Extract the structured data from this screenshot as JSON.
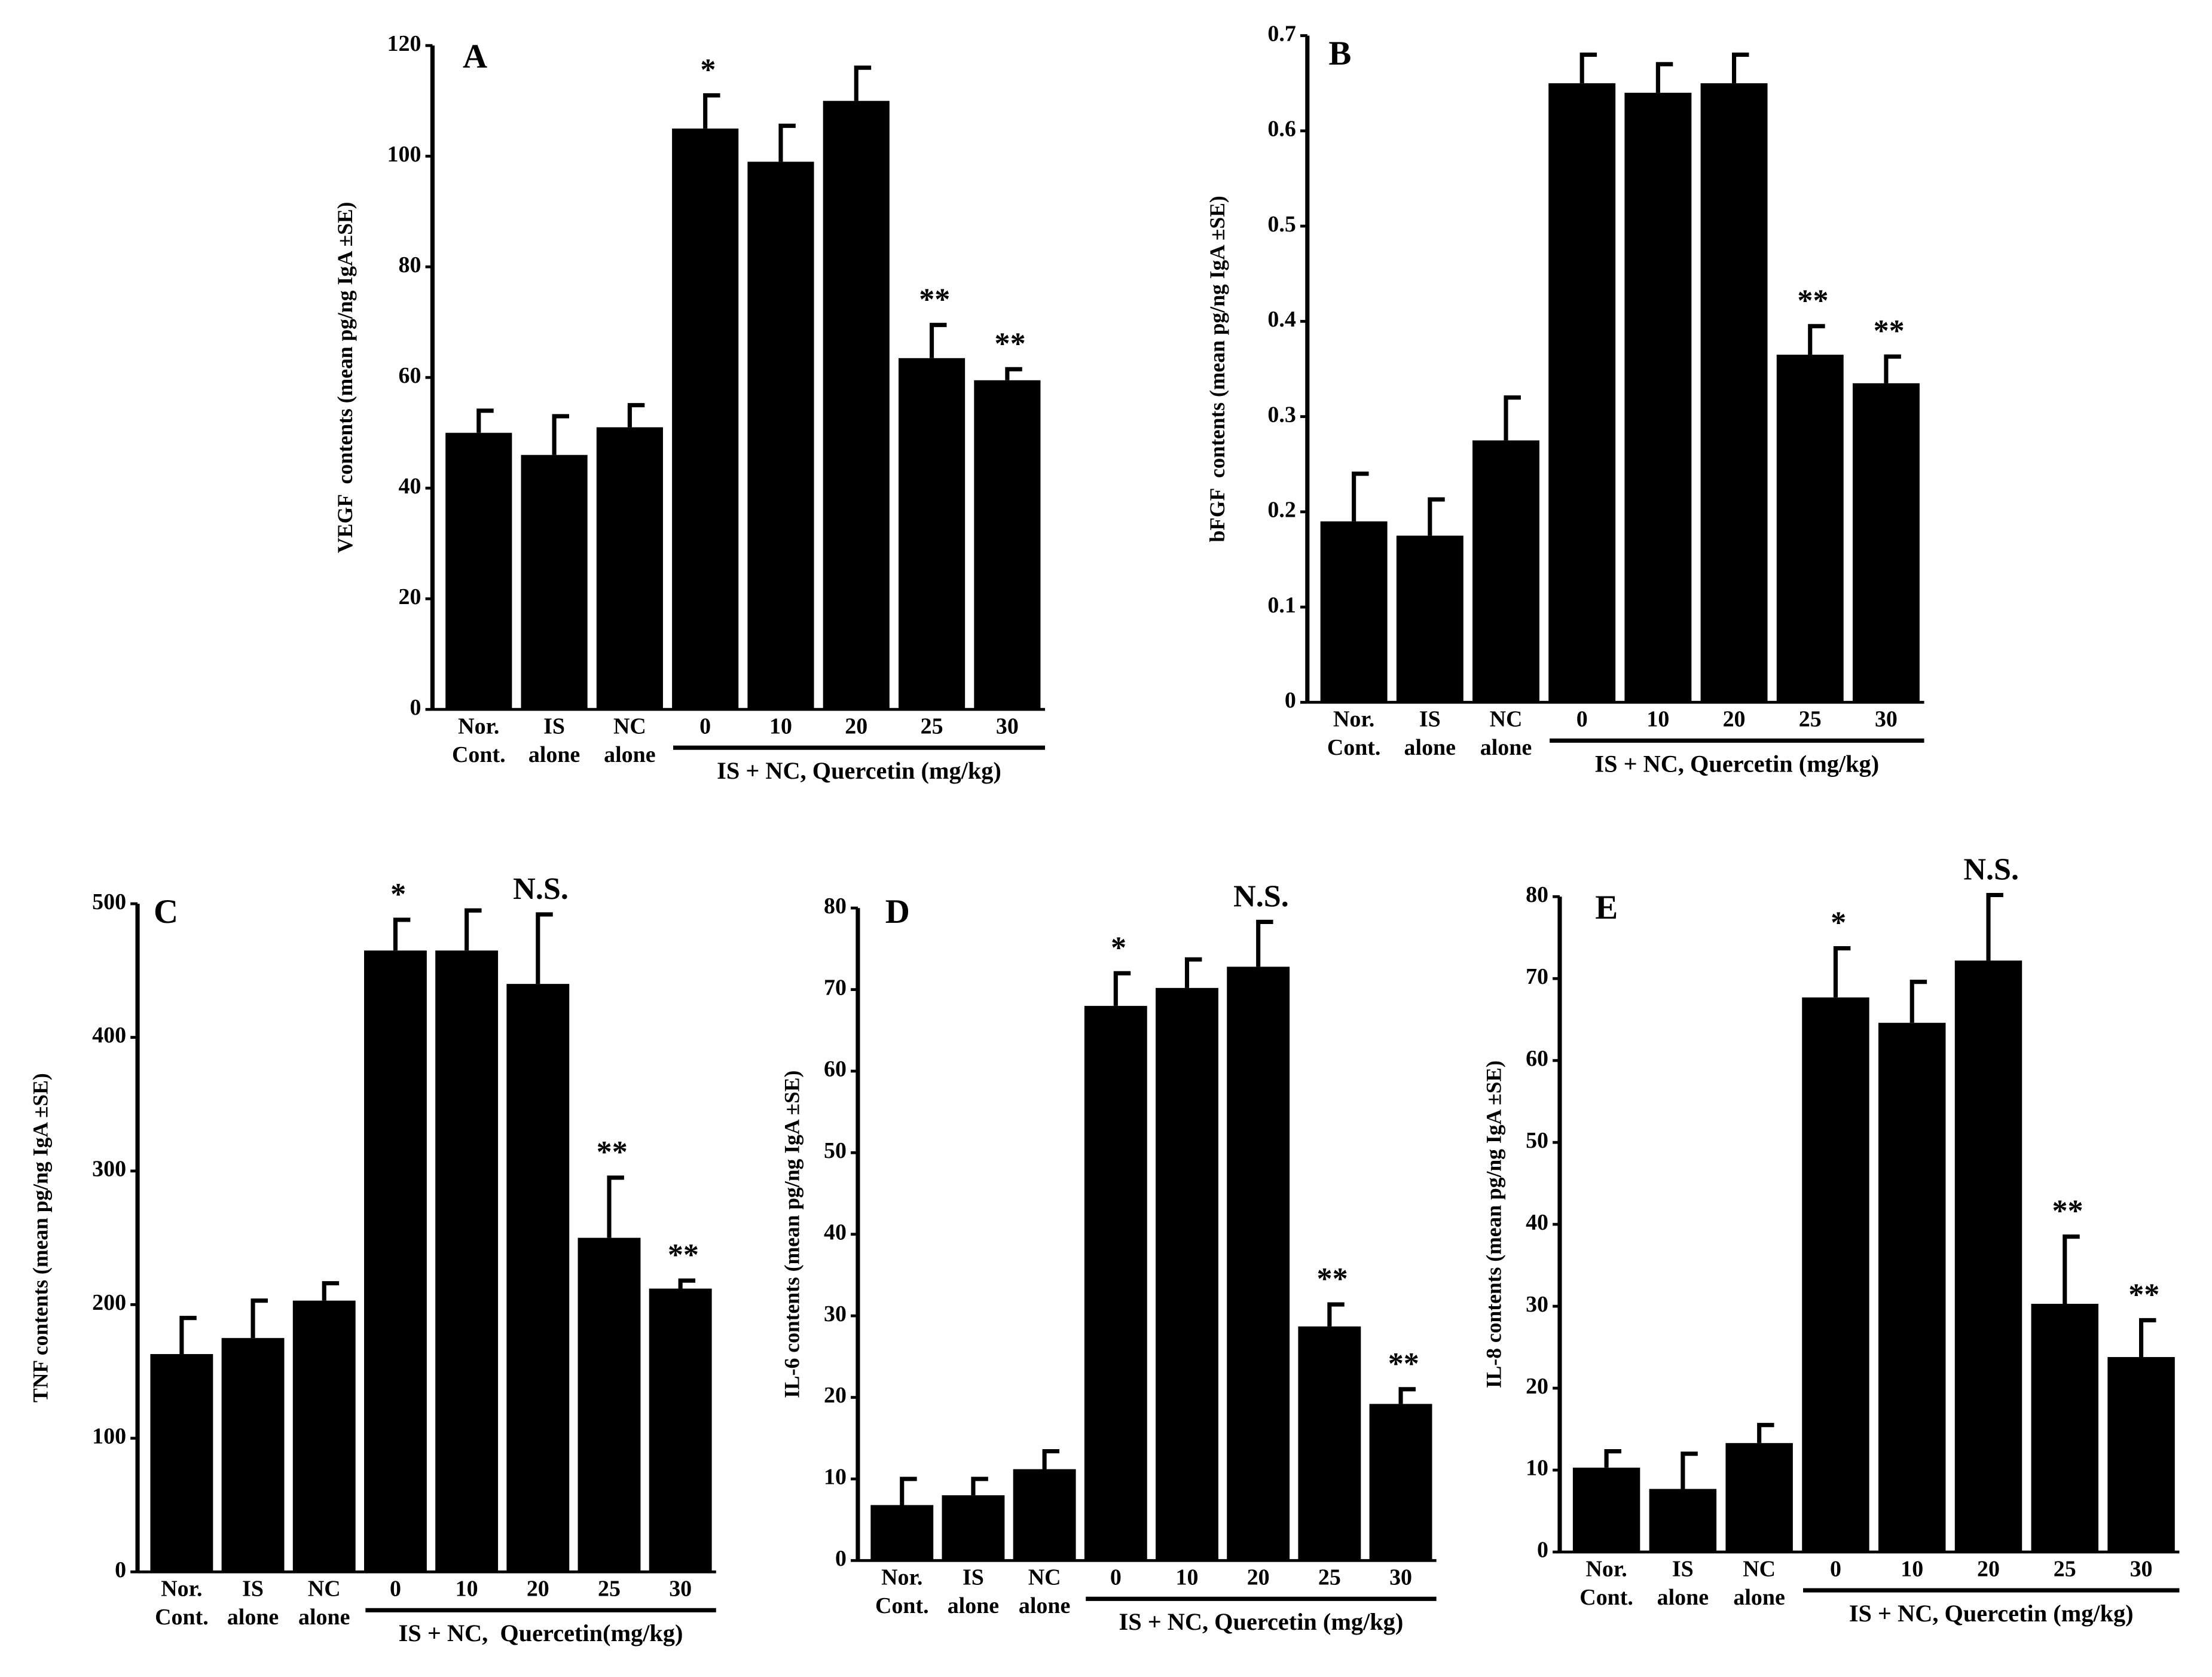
{
  "chart_data": [
    {
      "type": "bar",
      "title": "A",
      "y_label": "VEGF  contents (mean pg/ng IgA ±SE)",
      "group_label": "IS + NC, Quercetin (mg/kg)",
      "categories": [
        "Nor. Cont.",
        "IS alone",
        "NC alone",
        "0",
        "10",
        "20",
        "25",
        "30"
      ],
      "values": [
        50,
        46,
        51,
        105,
        99,
        110,
        63.5,
        59.5
      ],
      "errors": [
        4,
        7,
        4,
        6,
        6.5,
        6,
        6,
        2
      ],
      "annotations": [
        null,
        null,
        null,
        "*",
        null,
        null,
        "**",
        "**"
      ],
      "color": "#000000",
      "ylim": [
        0,
        120
      ],
      "yticks": [
        0,
        20,
        40,
        60,
        80,
        100,
        120
      ]
    },
    {
      "type": "bar",
      "title": "B",
      "y_label": "bFGF  contents (mean pg/ng IgA ±SE)",
      "group_label": "IS + NC, Quercetin (mg/kg)",
      "categories": [
        "Nor. Cont.",
        "IS alone",
        "NC alone",
        "0",
        "10",
        "20",
        "25",
        "30"
      ],
      "values": [
        0.19,
        0.175,
        0.275,
        0.65,
        0.64,
        0.65,
        0.365,
        0.335
      ],
      "errors": [
        0.05,
        0.038,
        0.045,
        0.03,
        0.03,
        0.03,
        0.03,
        0.028
      ],
      "annotations": [
        null,
        null,
        null,
        null,
        null,
        null,
        "**",
        "**"
      ],
      "color": "#000000",
      "ylim": [
        0,
        0.7
      ],
      "yticks": [
        0,
        0.1,
        0.2,
        0.3,
        0.4,
        0.5,
        0.6,
        0.7
      ]
    },
    {
      "type": "bar",
      "title": "C",
      "y_label": "TNF contents (mean pg/ng IgA ±SE)",
      "group_label": "IS + NC,  Quercetin(mg/kg)",
      "categories": [
        "Nor. Cont.",
        "IS alone",
        "NC alone",
        "0",
        "10",
        "20",
        "25",
        "30"
      ],
      "values": [
        163,
        175,
        203,
        465,
        465,
        440,
        250,
        212
      ],
      "errors": [
        27,
        28,
        13,
        23,
        30,
        52,
        45,
        6
      ],
      "annotations": [
        null,
        null,
        null,
        "*",
        null,
        "N.S.",
        "**",
        "**"
      ],
      "color": "#000000",
      "ylim": [
        0,
        500
      ],
      "yticks": [
        0,
        100,
        200,
        300,
        400,
        500
      ]
    },
    {
      "type": "bar",
      "title": "D",
      "y_label": "IL-6 contents (mean pg/ng IgA ±SE)",
      "group_label": "IS + NC, Quercetin (mg/kg)",
      "categories": [
        "Nor. Cont.",
        "IS alone",
        "NC alone",
        "0",
        "10",
        "20",
        "25",
        "30"
      ],
      "values": [
        6.8,
        8,
        11.2,
        68,
        70.2,
        72.8,
        28.7,
        19.2
      ],
      "errors": [
        3.2,
        2,
        2.2,
        4,
        3.5,
        5.5,
        2.7,
        1.8
      ],
      "annotations": [
        null,
        null,
        null,
        "*",
        null,
        "N.S.",
        "**",
        "**"
      ],
      "color": "#000000",
      "ylim": [
        0,
        80
      ],
      "yticks": [
        0,
        10,
        20,
        30,
        40,
        50,
        60,
        70,
        80
      ]
    },
    {
      "type": "bar",
      "title": "E",
      "y_label": "IL-8 contents (mean pg/ng IgA ±SE)",
      "group_label": "IS + NC, Quercetin (mg/kg)",
      "categories": [
        "Nor. Cont.",
        "IS alone",
        "NC alone",
        "0",
        "10",
        "20",
        "25",
        "30"
      ],
      "values": [
        10.3,
        7.7,
        13.3,
        67.7,
        64.6,
        72.2,
        30.3,
        23.8
      ],
      "errors": [
        2,
        4.3,
        2.2,
        6,
        5,
        8,
        8.2,
        4.5
      ],
      "annotations": [
        null,
        null,
        null,
        "*",
        null,
        "N.S.",
        "**",
        "**"
      ],
      "color": "#000000",
      "ylim": [
        0,
        80
      ],
      "yticks": [
        0,
        10,
        20,
        30,
        40,
        50,
        60,
        70,
        80
      ]
    }
  ]
}
